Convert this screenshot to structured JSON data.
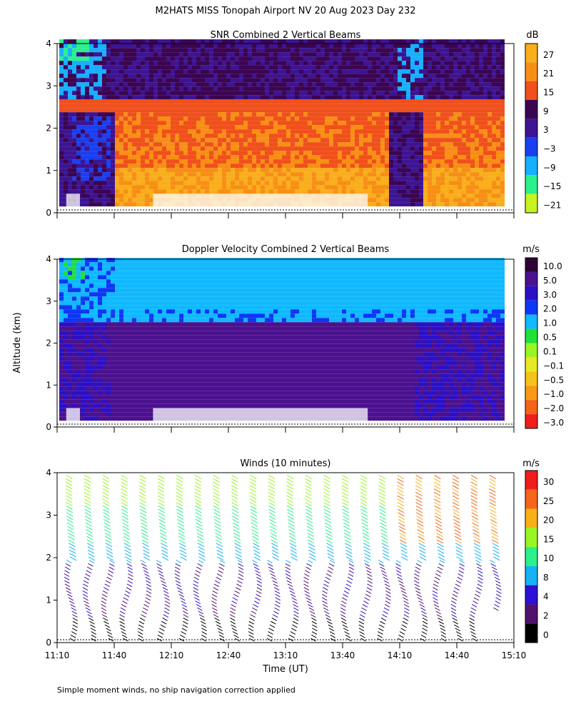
{
  "title": "M2HATS MISS Tonopah Airport NV  20 Aug 2023 Day 232",
  "ylabel": "Altitude (km)",
  "xlabel": "Time (UT)",
  "footnote": "Simple moment winds, no ship navigation correction applied",
  "chart_data": [
    {
      "type": "heatmap",
      "title": "SNR Combined 2 Vertical Beams",
      "unit": "dB",
      "ylim": [
        0,
        4
      ],
      "yticks": [
        "0",
        "1",
        "2",
        "3",
        "4"
      ],
      "colorbar_labels": [
        "27",
        "21",
        "15",
        "9",
        "3",
        "−3",
        "−9",
        "−15",
        "−21"
      ],
      "colorbar_colors": [
        "#f9ae1c",
        "#f78f16",
        "#f0501c",
        "#3b0552",
        "#3d1493",
        "#1a3ff0",
        "#17b0ff",
        "#2bf08c",
        "#c6f321"
      ]
    },
    {
      "type": "heatmap",
      "title": "Doppler Velocity Combined 2 Vertical Beams",
      "unit": "m/s",
      "ylim": [
        0,
        4
      ],
      "yticks": [
        "0",
        "1",
        "2",
        "3",
        "4"
      ],
      "colorbar_labels": [
        "10.0",
        "5.0",
        "3.0",
        "2.0",
        "1.0",
        "0.5",
        "0.1",
        "−0.1",
        "−0.5",
        "−1.0",
        "−2.0",
        "−3.0"
      ],
      "colorbar_colors": [
        "#2d0535",
        "#4b118e",
        "#2c10c6",
        "#0d36f5",
        "#10b8ff",
        "#21e03b",
        "#9af526",
        "#e8e925",
        "#f8c21c",
        "#f89919",
        "#f56318",
        "#f01d1d"
      ]
    },
    {
      "type": "scatter",
      "title": "Winds (10 minutes)",
      "unit": "m/s",
      "ylim": [
        0,
        4
      ],
      "yticks": [
        "0",
        "1",
        "2",
        "3",
        "4"
      ],
      "xticks": [
        "11:10",
        "11:40",
        "12:10",
        "12:40",
        "13:10",
        "13:40",
        "14:10",
        "14:40",
        "15:10"
      ],
      "colorbar_labels": [
        "30",
        "25",
        "20",
        "15",
        "10",
        "8",
        "4",
        "2",
        "0"
      ],
      "colorbar_colors": [
        "#f01d1d",
        "#f5651a",
        "#f8b019",
        "#9af526",
        "#2bf08c",
        "#18b1f2",
        "#2c10d6",
        "#51126e",
        "#000000"
      ]
    }
  ]
}
